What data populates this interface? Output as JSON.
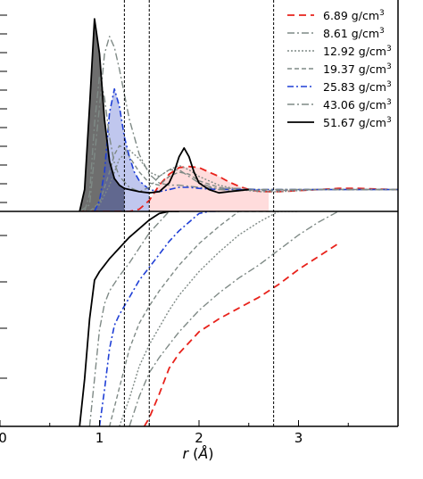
{
  "chart_data": [
    {
      "panel": "top",
      "type": "line",
      "xlim": [
        0,
        4.0
      ],
      "ylim": [
        0,
        9.5
      ],
      "vlines_dashed": [
        1.25,
        1.5,
        2.75
      ],
      "legend_placement": "top-right",
      "shaded_regions": [
        {
          "series_index": 6,
          "x_range": [
            0.8,
            1.25
          ],
          "color": "#555555"
        },
        {
          "series_index": 4,
          "x_range": [
            0.95,
            1.5
          ],
          "color": "#4a5fcf"
        },
        {
          "series_index": 0,
          "x_range": [
            1.5,
            2.75
          ],
          "color": "#ff9a9a"
        }
      ],
      "series": [
        {
          "name": "6.89 g/cm³",
          "color": "#e8221b",
          "dash": "8,5",
          "width": 1.8,
          "x": [
            0.8,
            0.9,
            1.0,
            1.1,
            1.2,
            1.3,
            1.4,
            1.5,
            1.6,
            1.7,
            1.8,
            1.9,
            2.0,
            2.1,
            2.2,
            2.3,
            2.4,
            2.5,
            2.6,
            2.7,
            2.8,
            2.9,
            3.0,
            3.2,
            3.4,
            3.6,
            3.8,
            4.0
          ],
          "y": [
            0,
            0,
            0,
            0,
            0,
            0,
            0.1,
            0.5,
            1.2,
            1.7,
            2.0,
            2.05,
            2.0,
            1.8,
            1.6,
            1.35,
            1.15,
            1.0,
            0.92,
            0.9,
            0.9,
            0.92,
            0.95,
            1.0,
            1.05,
            1.05,
            1.02,
            1.0
          ]
        },
        {
          "name": "8.61 g/cm³",
          "color": "#7f8a86",
          "dash": "8,3,2,3",
          "width": 1.4,
          "x": [
            0.8,
            0.9,
            1.0,
            1.05,
            1.1,
            1.15,
            1.2,
            1.3,
            1.4,
            1.5,
            1.6,
            1.7,
            1.8,
            1.9,
            2.0,
            2.2,
            2.4,
            2.6,
            2.8,
            3.0,
            3.2,
            3.4,
            3.6,
            3.8,
            4.0
          ],
          "y": [
            0,
            0.3,
            4.8,
            7.2,
            8.0,
            7.5,
            6.5,
            4.2,
            2.6,
            1.7,
            1.3,
            1.2,
            1.2,
            1.15,
            1.1,
            1.05,
            1.05,
            1.0,
            1.0,
            1.0,
            1.0,
            1.0,
            1.0,
            1.0,
            1.0
          ]
        },
        {
          "name": "12.92 g/cm³",
          "color": "#7f8a86",
          "dash": "2,2",
          "width": 1.4,
          "x": [
            0.9,
            1.0,
            1.1,
            1.2,
            1.3,
            1.4,
            1.5,
            1.6,
            1.7,
            1.8,
            1.9,
            2.0,
            2.2,
            2.4,
            2.6,
            2.8,
            3.0,
            3.2,
            3.4,
            3.6,
            3.8,
            4.0
          ],
          "y": [
            0,
            0.3,
            1.2,
            2.4,
            2.8,
            2.4,
            1.8,
            1.6,
            1.9,
            2.1,
            1.9,
            1.6,
            1.2,
            1.0,
            0.9,
            0.9,
            0.95,
            1.0,
            1.0,
            1.0,
            1.0,
            1.0
          ]
        },
        {
          "name": "19.37 g/cm³",
          "color": "#7f8a86",
          "dash": "5,3",
          "width": 1.4,
          "x": [
            0.9,
            1.0,
            1.1,
            1.15,
            1.2,
            1.25,
            1.3,
            1.4,
            1.5,
            1.6,
            1.7,
            1.8,
            1.9,
            2.0,
            2.2,
            2.4,
            2.6,
            2.8,
            3.0,
            3.2,
            3.4,
            3.6,
            3.8,
            4.0
          ],
          "y": [
            0,
            0.4,
            1.8,
            2.6,
            3.0,
            2.9,
            2.5,
            1.8,
            1.3,
            1.2,
            1.6,
            1.8,
            1.7,
            1.4,
            1.1,
            1.0,
            0.95,
            0.95,
            1.0,
            1.0,
            1.0,
            1.0,
            1.0,
            1.0
          ]
        },
        {
          "name": "25.83 g/cm³",
          "color": "#1f3fd6",
          "dash": "7,3,2,3",
          "width": 1.6,
          "x": [
            0.95,
            1.0,
            1.05,
            1.1,
            1.15,
            1.2,
            1.25,
            1.3,
            1.35,
            1.4,
            1.5,
            1.6,
            1.7,
            1.8,
            1.9,
            2.0,
            2.2,
            2.4,
            2.6,
            2.8,
            3.0,
            3.2,
            3.4,
            3.6,
            3.8,
            4.0
          ],
          "y": [
            0,
            0.5,
            1.8,
            4.5,
            5.6,
            4.8,
            3.4,
            2.5,
            1.8,
            1.4,
            1.0,
            0.9,
            1.0,
            1.1,
            1.1,
            1.05,
            1.0,
            1.0,
            1.0,
            1.0,
            1.0,
            1.0,
            1.0,
            1.0,
            1.0,
            1.0
          ]
        },
        {
          "name": "43.06 g/cm³",
          "color": "#7f8a86",
          "dash": "8,3,2,3",
          "width": 1.4,
          "x": [
            0.85,
            0.9,
            0.95,
            1.0,
            1.05,
            1.1,
            1.15,
            1.2,
            1.3,
            1.4,
            1.5,
            1.6,
            1.7,
            1.8,
            1.9,
            2.0,
            2.2,
            2.4,
            2.6,
            2.8,
            3.0,
            3.2,
            3.4,
            3.6,
            3.8,
            4.0
          ],
          "y": [
            0,
            0.8,
            4.0,
            6.2,
            5.2,
            3.4,
            2.2,
            1.6,
            1.1,
            0.9,
            1.1,
            1.6,
            1.9,
            1.9,
            1.6,
            1.3,
            1.0,
            0.95,
            1.0,
            1.0,
            1.0,
            1.0,
            1.0,
            1.0,
            1.0,
            1.0
          ]
        },
        {
          "name": "51.67 g/cm³",
          "color": "#000000",
          "dash": "",
          "width": 1.8,
          "x": [
            0.8,
            0.85,
            0.9,
            0.95,
            1.0,
            1.05,
            1.1,
            1.15,
            1.2,
            1.25,
            1.3,
            1.4,
            1.5,
            1.6,
            1.7,
            1.75,
            1.8,
            1.85,
            1.9,
            1.95,
            2.0,
            2.1,
            2.2,
            2.3,
            2.4,
            2.5
          ],
          "y": [
            0,
            1.0,
            4.8,
            8.8,
            7.2,
            4.2,
            2.3,
            1.5,
            1.2,
            1.05,
            1.0,
            0.9,
            0.85,
            0.9,
            1.3,
            1.8,
            2.5,
            2.9,
            2.5,
            1.8,
            1.3,
            1.0,
            0.85,
            0.9,
            0.95,
            1.0
          ]
        }
      ]
    },
    {
      "panel": "bottom",
      "type": "line",
      "xlim": [
        0,
        4.0
      ],
      "ylim": [
        0,
        10
      ],
      "xlabel": "r (Å)",
      "xticks": [
        0,
        1,
        2,
        3
      ],
      "vlines_dashed": [
        1.25,
        1.5,
        2.75
      ],
      "series": [
        {
          "name": "6.89 g/cm³",
          "color": "#e8221b",
          "dash": "8,5",
          "width": 1.8,
          "x": [
            1.45,
            1.5,
            1.6,
            1.7,
            1.8,
            2.0,
            2.2,
            2.4,
            2.6,
            2.8,
            3.0,
            3.2,
            3.4
          ],
          "y": [
            0,
            0.4,
            1.5,
            2.7,
            3.4,
            4.4,
            5.0,
            5.5,
            6.0,
            6.6,
            7.3,
            7.9,
            8.5
          ]
        },
        {
          "name": "8.61 g/cm³",
          "color": "#7f8a86",
          "dash": "8,3,2,3",
          "width": 1.4,
          "x": [
            1.3,
            1.4,
            1.5,
            1.6,
            1.7,
            1.8,
            2.0,
            2.2,
            2.4,
            2.6,
            2.8,
            3.0,
            3.2,
            3.4
          ],
          "y": [
            0,
            1.4,
            2.5,
            3.2,
            3.8,
            4.4,
            5.4,
            6.2,
            6.9,
            7.5,
            8.2,
            8.9,
            9.5,
            10
          ]
        },
        {
          "name": "12.92 g/cm³",
          "color": "#7f8a86",
          "dash": "2,2",
          "width": 1.4,
          "x": [
            1.2,
            1.3,
            1.4,
            1.5,
            1.6,
            1.7,
            1.8,
            2.0,
            2.2,
            2.4,
            2.6,
            2.8,
            3.0
          ],
          "y": [
            0,
            1.3,
            2.8,
            3.8,
            4.6,
            5.4,
            6.1,
            7.2,
            8.1,
            8.9,
            9.5,
            10,
            10
          ]
        },
        {
          "name": "19.37 g/cm³",
          "color": "#7f8a86",
          "dash": "5,3",
          "width": 1.4,
          "x": [
            1.1,
            1.2,
            1.3,
            1.4,
            1.5,
            1.6,
            1.7,
            1.8,
            2.0,
            2.2,
            2.4,
            2.6,
            2.8
          ],
          "y": [
            0,
            1.8,
            3.6,
            4.8,
            5.6,
            6.3,
            6.9,
            7.5,
            8.5,
            9.3,
            10,
            10,
            10
          ]
        },
        {
          "name": "25.83 g/cm³",
          "color": "#1f3fd6",
          "dash": "7,3,2,3",
          "width": 1.6,
          "x": [
            1.0,
            1.05,
            1.1,
            1.15,
            1.2,
            1.3,
            1.4,
            1.5,
            1.6,
            1.7,
            1.8,
            2.0,
            2.1,
            2.2
          ],
          "y": [
            0,
            1.7,
            3.6,
            4.7,
            5.2,
            6.0,
            6.8,
            7.4,
            8.0,
            8.6,
            9.1,
            9.9,
            10,
            10
          ]
        },
        {
          "name": "43.06 g/cm³",
          "color": "#7f8a86",
          "dash": "8,3,2,3",
          "width": 1.4,
          "x": [
            0.9,
            0.95,
            1.0,
            1.05,
            1.1,
            1.2,
            1.3,
            1.4,
            1.5,
            1.6,
            1.7,
            1.8
          ],
          "y": [
            0,
            2.2,
            4.5,
            5.7,
            6.3,
            7.0,
            7.6,
            8.3,
            9.0,
            9.5,
            10,
            10
          ]
        },
        {
          "name": "51.67 g/cm³",
          "color": "#000000",
          "dash": "",
          "width": 1.8,
          "x": [
            0.8,
            0.85,
            0.9,
            0.95,
            1.0,
            1.05,
            1.1,
            1.2,
            1.3,
            1.4,
            1.5,
            1.6,
            1.7,
            1.8
          ],
          "y": [
            0,
            2.2,
            5.0,
            6.8,
            7.2,
            7.5,
            7.8,
            8.3,
            8.8,
            9.2,
            9.6,
            9.9,
            10,
            10
          ]
        }
      ]
    }
  ],
  "legend": [
    {
      "label": "6.89 g/cm",
      "sup": "3"
    },
    {
      "label": "8.61 g/cm",
      "sup": "3"
    },
    {
      "label": "12.92 g/cm",
      "sup": "3"
    },
    {
      "label": "19.37 g/cm",
      "sup": "3"
    },
    {
      "label": "25.83 g/cm",
      "sup": "3"
    },
    {
      "label": "43.06 g/cm",
      "sup": "3"
    },
    {
      "label": "51.67 g/cm",
      "sup": "3"
    }
  ],
  "xlabel_parts": {
    "var": "r",
    "unit_open": " (",
    "unit": "Å",
    "unit_close": ")"
  },
  "xtick_labels": [
    "0",
    "1",
    "2",
    "3"
  ]
}
